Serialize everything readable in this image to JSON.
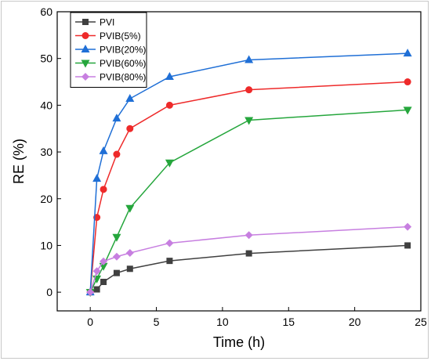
{
  "chart_data": {
    "type": "line",
    "title": "",
    "xlabel": "Time (h)",
    "ylabel": "RE (%)",
    "xlim": [
      -2.5,
      25
    ],
    "ylim": [
      -4,
      60
    ],
    "xticks": [
      0,
      5,
      10,
      15,
      20,
      25
    ],
    "yticks": [
      0,
      10,
      20,
      30,
      40,
      50,
      60
    ],
    "grid": false,
    "legend_position": "top-left",
    "x": [
      0,
      0.5,
      1,
      2,
      3,
      6,
      12,
      24
    ],
    "series": [
      {
        "name": "PVI",
        "color": "#404040",
        "marker": "square",
        "values": [
          0,
          0.6,
          2.2,
          4.1,
          5.0,
          6.7,
          8.3,
          10.0
        ]
      },
      {
        "name": "PVIB(5%)",
        "color": "#ee2a2a",
        "marker": "circle",
        "values": [
          0,
          16.0,
          22.0,
          29.5,
          35.0,
          40.0,
          43.3,
          45.0
        ]
      },
      {
        "name": "PVIB(20%)",
        "color": "#1f6fd6",
        "marker": "triangle-up",
        "values": [
          0,
          24.3,
          30.2,
          37.2,
          41.4,
          46.1,
          49.7,
          51.1
        ]
      },
      {
        "name": "PVIB(60%)",
        "color": "#25a63c",
        "marker": "triangle-down",
        "values": [
          0,
          2.9,
          5.6,
          11.8,
          18.0,
          27.7,
          36.8,
          39.0
        ]
      },
      {
        "name": "PVIB(80%)",
        "color": "#c77fe0",
        "marker": "diamond",
        "values": [
          0,
          4.5,
          6.6,
          7.6,
          8.4,
          10.5,
          12.2,
          14.0
        ]
      }
    ]
  }
}
